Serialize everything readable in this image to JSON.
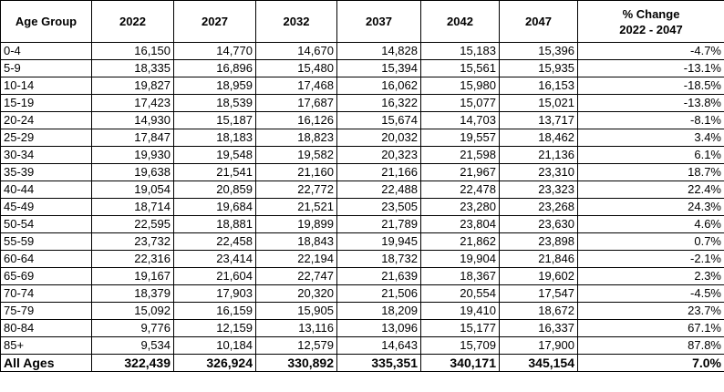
{
  "table": {
    "header": [
      "Age Group",
      "2022",
      "2027",
      "2032",
      "2037",
      "2042",
      "2047",
      "% Change\n2022 - 2047"
    ],
    "rows": [
      [
        "0-4",
        "16,150",
        "14,770",
        "14,670",
        "14,828",
        "15,183",
        "15,396",
        "-4.7%"
      ],
      [
        "5-9",
        "18,335",
        "16,896",
        "15,480",
        "15,394",
        "15,561",
        "15,935",
        "-13.1%"
      ],
      [
        "10-14",
        "19,827",
        "18,959",
        "17,468",
        "16,062",
        "15,980",
        "16,153",
        "-18.5%"
      ],
      [
        "15-19",
        "17,423",
        "18,539",
        "17,687",
        "16,322",
        "15,077",
        "15,021",
        "-13.8%"
      ],
      [
        "20-24",
        "14,930",
        "15,187",
        "16,126",
        "15,674",
        "14,703",
        "13,717",
        "-8.1%"
      ],
      [
        "25-29",
        "17,847",
        "18,183",
        "18,823",
        "20,032",
        "19,557",
        "18,462",
        "3.4%"
      ],
      [
        "30-34",
        "19,930",
        "19,548",
        "19,582",
        "20,323",
        "21,598",
        "21,136",
        "6.1%"
      ],
      [
        "35-39",
        "19,638",
        "21,541",
        "21,160",
        "21,166",
        "21,967",
        "23,310",
        "18.7%"
      ],
      [
        "40-44",
        "19,054",
        "20,859",
        "22,772",
        "22,488",
        "22,478",
        "23,323",
        "22.4%"
      ],
      [
        "45-49",
        "18,714",
        "19,684",
        "21,521",
        "23,505",
        "23,280",
        "23,268",
        "24.3%"
      ],
      [
        "50-54",
        "22,595",
        "18,881",
        "19,899",
        "21,789",
        "23,804",
        "23,630",
        "4.6%"
      ],
      [
        "55-59",
        "23,732",
        "22,458",
        "18,843",
        "19,945",
        "21,862",
        "23,898",
        "0.7%"
      ],
      [
        "60-64",
        "22,316",
        "23,414",
        "22,194",
        "18,732",
        "19,904",
        "21,846",
        "-2.1%"
      ],
      [
        "65-69",
        "19,167",
        "21,604",
        "22,747",
        "21,639",
        "18,367",
        "19,602",
        "2.3%"
      ],
      [
        "70-74",
        "18,379",
        "17,903",
        "20,320",
        "21,506",
        "20,554",
        "17,547",
        "-4.5%"
      ],
      [
        "75-79",
        "15,092",
        "16,159",
        "15,905",
        "18,209",
        "19,410",
        "18,672",
        "23.7%"
      ],
      [
        "80-84",
        "9,776",
        "12,159",
        "13,116",
        "13,096",
        "15,177",
        "16,337",
        "67.1%"
      ],
      [
        "85+",
        "9,534",
        "10,184",
        "12,579",
        "14,643",
        "15,709",
        "17,900",
        "87.8%"
      ],
      [
        "All Ages",
        "322,439",
        "326,924",
        "330,892",
        "335,351",
        "340,171",
        "345,154",
        "7.0%"
      ]
    ]
  }
}
